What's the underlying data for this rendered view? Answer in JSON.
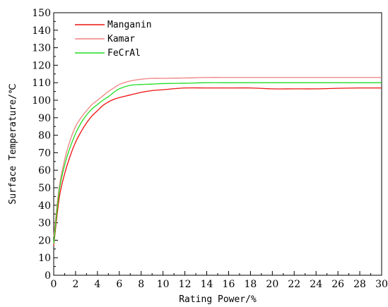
{
  "chart_data": {
    "type": "line",
    "title": "",
    "xlabel": "Rating Power/%",
    "ylabel": "Surface Temperature/℃",
    "xlim": [
      0,
      30
    ],
    "ylim": [
      0,
      150
    ],
    "xticks": [
      0,
      2,
      4,
      6,
      8,
      10,
      12,
      14,
      16,
      18,
      20,
      22,
      24,
      26,
      28,
      30
    ],
    "yticks": [
      0,
      10,
      20,
      30,
      40,
      50,
      60,
      70,
      80,
      90,
      100,
      110,
      120,
      130,
      140,
      150
    ],
    "grid": false,
    "legend_position": "top-left",
    "series": [
      {
        "name": "Manganin",
        "color": "#ee1111",
        "x": [
          0,
          0.5,
          1,
          1.5,
          2,
          2.5,
          3,
          3.5,
          4,
          4.5,
          5,
          5.5,
          6,
          7,
          8,
          9,
          10,
          12,
          14,
          16,
          18,
          20,
          22,
          24,
          26,
          28,
          30
        ],
        "y": [
          17,
          44,
          58,
          68,
          76,
          82,
          87,
          91,
          94,
          97,
          99,
          100.5,
          101.5,
          103,
          104.5,
          105.5,
          106,
          107,
          107,
          107,
          107,
          106.5,
          106.5,
          106.5,
          106.8,
          107,
          107
        ]
      },
      {
        "name": "Kamar",
        "color": "#f08080",
        "x": [
          0,
          0.5,
          1,
          1.5,
          2,
          2.5,
          3,
          3.5,
          4,
          4.5,
          5,
          5.5,
          6,
          7,
          8,
          9,
          10,
          12,
          14,
          16,
          18,
          20,
          22,
          24,
          26,
          28,
          30
        ],
        "y": [
          22,
          50,
          66,
          77,
          85,
          90,
          94,
          97.5,
          100,
          102.5,
          105,
          107,
          109,
          111,
          112,
          112.5,
          112.5,
          112.7,
          113,
          113,
          113,
          113,
          113,
          113,
          113,
          113,
          113
        ]
      },
      {
        "name": "FeCrAl",
        "color": "#22dd22",
        "x": [
          0,
          0.5,
          1,
          1.5,
          2,
          2.5,
          3,
          3.5,
          4,
          4.5,
          5,
          5.5,
          6,
          7,
          8,
          9,
          10,
          12,
          14,
          16,
          18,
          20,
          22,
          24,
          26,
          28,
          30
        ],
        "y": [
          18,
          48,
          63,
          73,
          81,
          87,
          91.5,
          95,
          97.5,
          100,
          102,
          104.5,
          106.5,
          108.5,
          109,
          109.2,
          109.5,
          109.7,
          110,
          110,
          110,
          110,
          110,
          110,
          110,
          110,
          110
        ]
      }
    ]
  }
}
